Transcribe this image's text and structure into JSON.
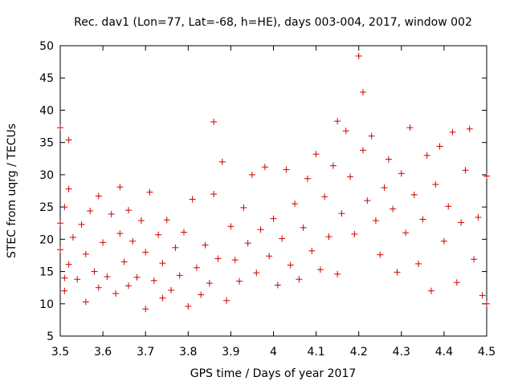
{
  "chart_data": {
    "type": "scatter",
    "title": "Rec. dav1 (Lon=77, Lat=-68, h=HE), days 003-004, 2017, window 002",
    "xlabel": "GPS time / Days of year 2017",
    "ylabel": "STEC from uqrg / TECUs",
    "xlim": [
      3.5,
      4.5
    ],
    "ylim": [
      5,
      50
    ],
    "x_ticks": [
      "3.5",
      "3.6",
      "3.7",
      "3.8",
      "3.9",
      "4",
      "4.1",
      "4.2",
      "4.3",
      "4.4",
      "4.5"
    ],
    "y_ticks": [
      "5",
      "10",
      "15",
      "20",
      "25",
      "30",
      "35",
      "40",
      "45",
      "50"
    ],
    "grid": false,
    "legend": "none",
    "marker": "plus",
    "marker_color": "#cc0000",
    "series": [
      {
        "points": [
          [
            3.5,
            37.3
          ],
          [
            3.51,
            25.0
          ],
          [
            3.52,
            35.4
          ],
          [
            3.52,
            27.8
          ],
          [
            3.5,
            22.5
          ],
          [
            3.5,
            18.4
          ],
          [
            3.51,
            14.0
          ],
          [
            3.51,
            12.0
          ],
          [
            3.52,
            16.1
          ],
          [
            3.53,
            20.3
          ],
          [
            3.54,
            13.8
          ],
          [
            3.55,
            22.3
          ],
          [
            3.56,
            17.7
          ],
          [
            3.56,
            10.3
          ],
          [
            3.57,
            24.4
          ],
          [
            3.58,
            15.0
          ],
          [
            3.59,
            26.7
          ],
          [
            3.59,
            12.5
          ],
          [
            3.6,
            19.5
          ],
          [
            3.61,
            14.2
          ],
          [
            3.62,
            23.9
          ],
          [
            3.63,
            11.6
          ],
          [
            3.64,
            20.9
          ],
          [
            3.64,
            28.1
          ],
          [
            3.65,
            16.5
          ],
          [
            3.66,
            24.5
          ],
          [
            3.66,
            12.8
          ],
          [
            3.67,
            19.7
          ],
          [
            3.68,
            14.1
          ],
          [
            3.69,
            22.9
          ],
          [
            3.7,
            18.0
          ],
          [
            3.7,
            9.2
          ],
          [
            3.71,
            27.3
          ],
          [
            3.72,
            13.6
          ],
          [
            3.73,
            20.7
          ],
          [
            3.74,
            10.9
          ],
          [
            3.74,
            16.3
          ],
          [
            3.75,
            23.0
          ],
          [
            3.76,
            12.1
          ],
          [
            3.77,
            18.7
          ],
          [
            3.78,
            14.4
          ],
          [
            3.79,
            21.1
          ],
          [
            3.8,
            9.6
          ],
          [
            3.81,
            26.2
          ],
          [
            3.82,
            15.6
          ],
          [
            3.83,
            11.4
          ],
          [
            3.84,
            19.1
          ],
          [
            3.85,
            13.2
          ],
          [
            3.86,
            38.2
          ],
          [
            3.86,
            27.0
          ],
          [
            3.87,
            17.0
          ],
          [
            3.88,
            32.0
          ],
          [
            3.89,
            10.5
          ],
          [
            3.9,
            22.0
          ],
          [
            3.91,
            16.8
          ],
          [
            3.92,
            13.5
          ],
          [
            3.93,
            24.9
          ],
          [
            3.94,
            19.4
          ],
          [
            3.95,
            30.0
          ],
          [
            3.96,
            14.8
          ],
          [
            3.97,
            21.5
          ],
          [
            3.98,
            31.2
          ],
          [
            3.99,
            17.4
          ],
          [
            4.0,
            23.2
          ],
          [
            4.01,
            12.9
          ],
          [
            4.02,
            20.1
          ],
          [
            4.03,
            30.8
          ],
          [
            4.04,
            16.0
          ],
          [
            4.05,
            25.5
          ],
          [
            4.06,
            13.8
          ],
          [
            4.07,
            21.8
          ],
          [
            4.08,
            29.4
          ],
          [
            4.09,
            18.2
          ],
          [
            4.1,
            33.2
          ],
          [
            4.11,
            15.3
          ],
          [
            4.12,
            26.6
          ],
          [
            4.13,
            20.4
          ],
          [
            4.14,
            31.4
          ],
          [
            4.15,
            38.3
          ],
          [
            4.15,
            14.6
          ],
          [
            4.16,
            24.0
          ],
          [
            4.17,
            36.8
          ],
          [
            4.18,
            29.7
          ],
          [
            4.19,
            20.8
          ],
          [
            4.2,
            48.4
          ],
          [
            4.21,
            42.8
          ],
          [
            4.21,
            33.8
          ],
          [
            4.22,
            26.0
          ],
          [
            4.23,
            36.0
          ],
          [
            4.24,
            22.9
          ],
          [
            4.25,
            17.6
          ],
          [
            4.26,
            28.0
          ],
          [
            4.27,
            32.4
          ],
          [
            4.28,
            24.7
          ],
          [
            4.29,
            14.9
          ],
          [
            4.3,
            30.2
          ],
          [
            4.31,
            21.0
          ],
          [
            4.32,
            37.3
          ],
          [
            4.33,
            26.9
          ],
          [
            4.34,
            16.2
          ],
          [
            4.35,
            23.1
          ],
          [
            4.36,
            33.0
          ],
          [
            4.37,
            12.0
          ],
          [
            4.38,
            28.5
          ],
          [
            4.39,
            34.4
          ],
          [
            4.4,
            19.7
          ],
          [
            4.41,
            25.1
          ],
          [
            4.42,
            36.6
          ],
          [
            4.43,
            13.3
          ],
          [
            4.44,
            22.6
          ],
          [
            4.45,
            30.7
          ],
          [
            4.46,
            37.1
          ],
          [
            4.47,
            16.9
          ],
          [
            4.48,
            23.4
          ],
          [
            4.49,
            11.3
          ],
          [
            4.5,
            29.8
          ],
          [
            4.5,
            10.0
          ]
        ]
      }
    ]
  }
}
